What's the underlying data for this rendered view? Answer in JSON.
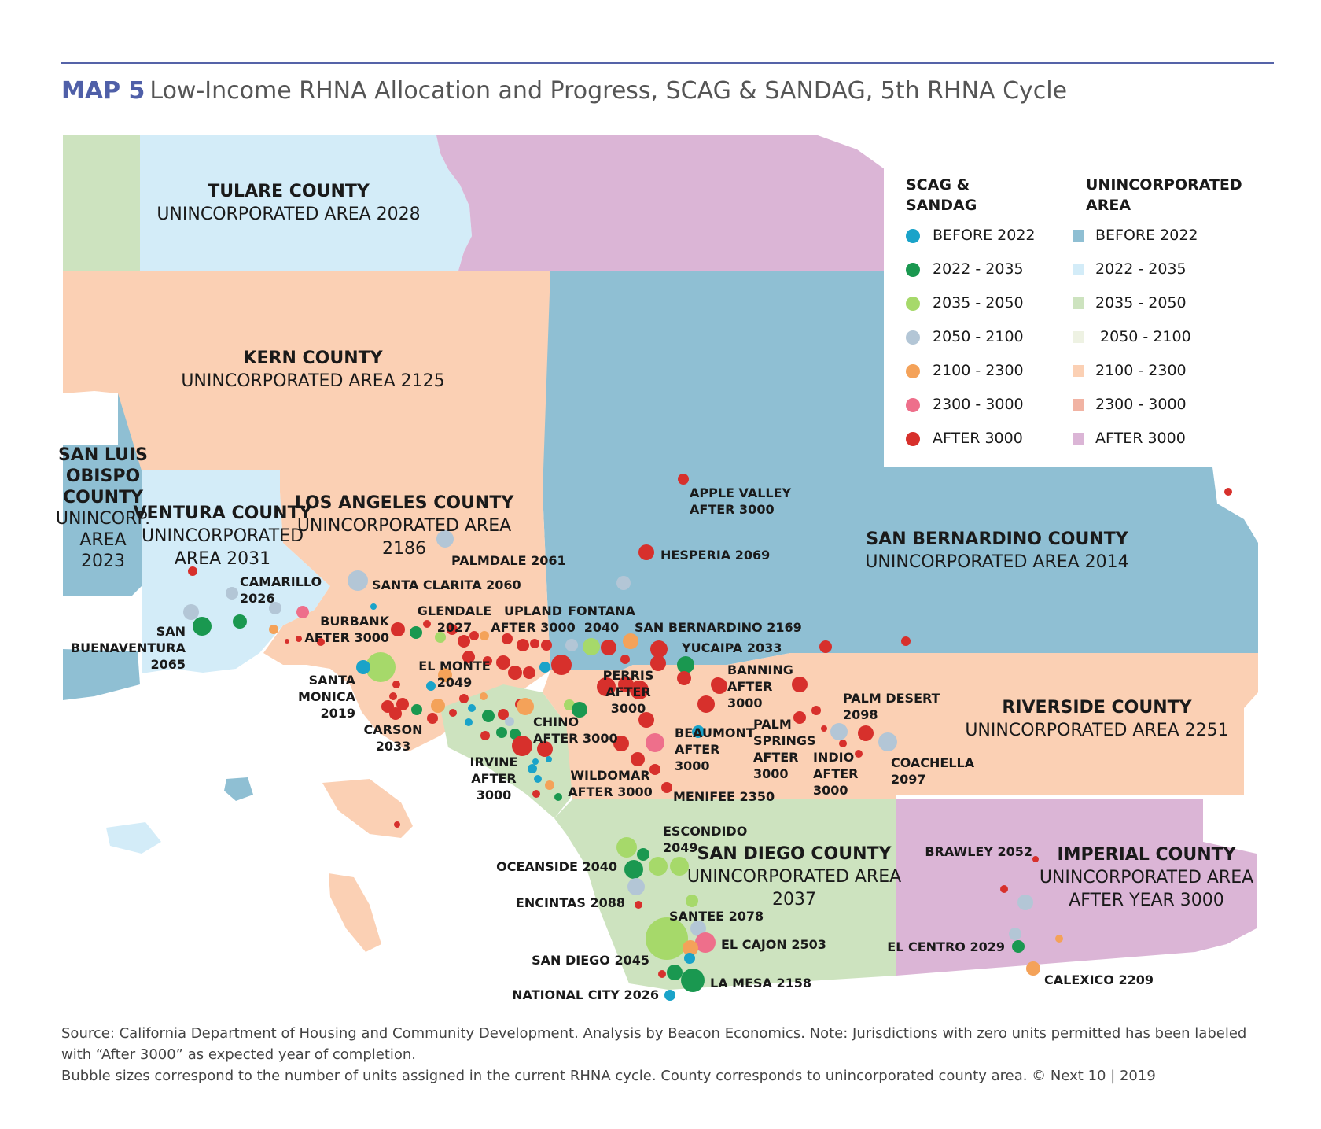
{
  "header": {
    "map_label": "MAP 5",
    "title": "Low-Income RHNA Allocation and Progress, SCAG & SANDAG, 5th RHNA Cycle"
  },
  "colors": {
    "before_2022_dot": "#1aa3c9",
    "y2022_2035_dot": "#1a9850",
    "y2035_2050_dot": "#a6d96a",
    "y2050_2100_dot": "#b3c6d6",
    "y2100_2300_dot": "#f4a259",
    "y2300_3000_dot": "#ee6f8b",
    "after_3000_dot": "#d7302c",
    "before_2022_area": "#8fbfd3",
    "y2022_2035_area": "#d3ecf8",
    "y2035_2050_area": "#cde3bf",
    "y2050_2100_area": "#eef2e3",
    "y2100_2300_area": "#fbd0b4",
    "y2300_3000_area": "#f1b3a3",
    "after_3000_area": "#dbb5d6"
  },
  "legend": {
    "cities_heading": [
      "SCAG &",
      "SANDAG"
    ],
    "areas_heading": [
      "UNINCORPORATED",
      "AREA"
    ],
    "cities": [
      {
        "label": "BEFORE 2022",
        "color": "#1aa3c9"
      },
      {
        "label": "2022 - 2035",
        "color": "#1a9850"
      },
      {
        "label": "2035 - 2050",
        "color": "#a6d96a"
      },
      {
        "label": "2050 - 2100",
        "color": "#b3c6d6"
      },
      {
        "label": "2100 - 2300",
        "color": "#f4a259"
      },
      {
        "label": "2300 - 3000",
        "color": "#ee6f8b"
      },
      {
        "label": "AFTER 3000",
        "color": "#d7302c"
      }
    ],
    "areas": [
      {
        "label": "BEFORE 2022",
        "color": "#8fbfd3"
      },
      {
        "label": "2022 - 2035",
        "color": "#d3ecf8"
      },
      {
        "label": "2035 - 2050",
        "color": "#cde3bf"
      },
      {
        "label": " 2050 - 2100",
        "color": "#eef2e3"
      },
      {
        "label": "2100 - 2300",
        "color": "#fbd0b4"
      },
      {
        "label": "2300 - 3000",
        "color": "#f1b3a3"
      },
      {
        "label": "AFTER 3000",
        "color": "#dbb5d6"
      }
    ]
  },
  "counties": {
    "tulare": [
      "TULARE COUNTY",
      "UNINCORPORATED AREA 2028"
    ],
    "kern": [
      "KERN COUNTY",
      "UNINCORPORATED AREA 2125"
    ],
    "slo": [
      "SAN LUIS",
      "OBISPO",
      "COUNTY",
      "UNINCORP.",
      "AREA",
      "2023"
    ],
    "ventura": [
      "VENTURA COUNTY",
      "UNINCORPORATED",
      "AREA 2031"
    ],
    "la": [
      "LOS ANGELES COUNTY",
      "UNINCORPORATED AREA",
      "2186"
    ],
    "sanbernardino": [
      "SAN BERNARDINO COUNTY",
      "UNINCORPORATED AREA 2014"
    ],
    "riverside": [
      "RIVERSIDE COUNTY",
      "UNINCORPORATED AREA 2251"
    ],
    "sandiego": [
      "SAN DIEGO COUNTY",
      "UNINCORPORATED AREA",
      "2037"
    ],
    "imperial": [
      "IMPERIAL COUNTY",
      "UNINCORPORATED AREA",
      "AFTER YEAR 3000"
    ]
  },
  "cities": {
    "apple_valley": [
      "APPLE VALLEY",
      "AFTER 3000"
    ],
    "hesperia": [
      "HESPERIA 2069"
    ],
    "palmdale": [
      "PALMDALE 2061"
    ],
    "santa_clarita": [
      "SANTA CLARITA 2060"
    ],
    "camarillo": [
      "CAMARILLO",
      "2026"
    ],
    "san_buenaventura": [
      "SAN",
      "BUENAVENTURA",
      "2065"
    ],
    "burbank": [
      "BURBANK",
      "AFTER 3000"
    ],
    "glendale": [
      "GLENDALE",
      "2027"
    ],
    "upland": [
      "UPLAND",
      "AFTER 3000"
    ],
    "fontana": [
      "FONTANA",
      "2040"
    ],
    "san_bernardino_city": [
      "SAN BERNARDINO 2169"
    ],
    "yucaipa": [
      "YUCAIPA 2033"
    ],
    "el_monte": [
      "EL MONTE",
      "2049"
    ],
    "santa_monica": [
      "SANTA",
      "MONICA",
      "2019"
    ],
    "carson": [
      "CARSON",
      "2033"
    ],
    "perris": [
      "PERRIS",
      "AFTER",
      "3000"
    ],
    "banning": [
      "BANNING",
      "AFTER",
      "3000"
    ],
    "palm_desert": [
      "PALM DESERT",
      "2098"
    ],
    "chino": [
      "CHINO",
      "AFTER 3000"
    ],
    "beaumont": [
      "BEAUMONT",
      "AFTER",
      "3000"
    ],
    "palm_springs": [
      "PALM",
      "SPRINGS",
      "AFTER",
      "3000"
    ],
    "indio": [
      "INDIO",
      "AFTER",
      "3000"
    ],
    "coachella": [
      "COACHELLA",
      "2097"
    ],
    "irvine": [
      "IRVINE",
      "AFTER",
      "3000"
    ],
    "wildomar": [
      "WILDOMAR",
      "AFTER 3000"
    ],
    "menifee": [
      "MENIFEE 2350"
    ],
    "escondido": [
      "ESCONDIDO",
      "2049"
    ],
    "oceanside": [
      "OCEANSIDE 2040"
    ],
    "encinitas": [
      "ENCINTAS 2088"
    ],
    "santee": [
      "SANTEE 2078"
    ],
    "el_cajon": [
      "EL CAJON 2503"
    ],
    "san_diego_city": [
      "SAN DIEGO 2045"
    ],
    "la_mesa": [
      "LA MESA 2158"
    ],
    "national_city": [
      "NATIONAL CITY 2026"
    ],
    "brawley": [
      "BRAWLEY 2052"
    ],
    "el_centro": [
      "EL CENTRO 2029"
    ],
    "calexico": [
      "CALEXICO 2209"
    ]
  },
  "source": [
    "Source: California Department of Housing and Community Development. Analysis by Beacon Economics. Note: Jurisdictions with zero units permitted has been labeled with “After 3000” as expected year of completion.",
    "Bubble sizes correspond to the number of units assigned in the current RHNA cycle. County corresponds to unincorporated county area. © Next 10 | 2019"
  ]
}
